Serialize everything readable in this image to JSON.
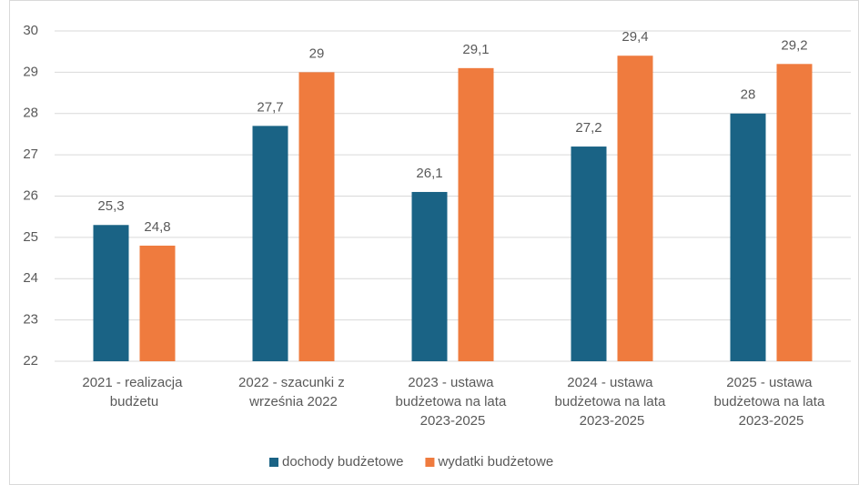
{
  "chart_data": {
    "type": "bar",
    "categories": [
      "2021 - realizacja budżetu",
      "2022 - szacunki z września 2022",
      "2023 - ustawa budżetowa na lata 2023-2025",
      "2024 - ustawa budżetowa na lata 2023-2025",
      "2025 - ustawa budżetowa na lata 2023-2025"
    ],
    "series": [
      {
        "name": "dochody budżetowe",
        "color": "#1a6385",
        "values": [
          25.3,
          27.7,
          26.1,
          27.2,
          28
        ],
        "value_labels": [
          "25,3",
          "27,7",
          "26,1",
          "27,2",
          "28"
        ]
      },
      {
        "name": "wydatki budżetowe",
        "color": "#ef7b3e",
        "values": [
          24.8,
          29,
          29.1,
          29.4,
          29.2
        ],
        "value_labels": [
          "24,8",
          "29",
          "29,1",
          "29,4",
          "29,2"
        ]
      }
    ],
    "ylim": [
      22,
      30
    ],
    "yticks": [
      22,
      23,
      24,
      25,
      26,
      27,
      28,
      29,
      30
    ],
    "grid": true,
    "legend": "bottom"
  }
}
